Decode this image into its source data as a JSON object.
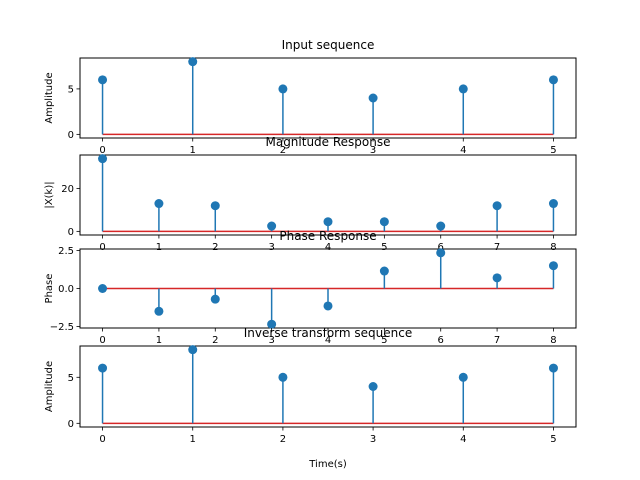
{
  "chart_data": [
    {
      "type": "stem",
      "title": "Input sequence",
      "xlabel": "",
      "ylabel": "Amplitude",
      "x": [
        0,
        1,
        2,
        3,
        4,
        5
      ],
      "y": [
        6,
        8,
        5,
        4,
        5,
        6
      ],
      "xlim": [
        -0.25,
        5.25
      ],
      "ylim": [
        -0.4,
        8.4
      ],
      "xticks": [
        0,
        1,
        2,
        3,
        4,
        5
      ],
      "yticks": [
        0,
        5
      ],
      "xtick_labels": [
        "0",
        "1",
        "2",
        "3",
        "4",
        "5"
      ],
      "ytick_labels": [
        "0",
        "5"
      ],
      "grid": false
    },
    {
      "type": "stem",
      "title": "Magnitude Response",
      "xlabel": "",
      "ylabel": "|X(k)|",
      "x": [
        0,
        1,
        2,
        3,
        4,
        5,
        6,
        7,
        8
      ],
      "y": [
        34,
        13,
        12,
        2.5,
        4.5,
        4.5,
        2.5,
        12,
        13
      ],
      "xlim": [
        -0.4,
        8.4
      ],
      "ylim": [
        -1.7,
        35.7
      ],
      "xticks": [
        0,
        1,
        2,
        3,
        4,
        5,
        6,
        7,
        8
      ],
      "yticks": [
        0,
        20
      ],
      "xtick_labels": [
        "0",
        "1",
        "2",
        "3",
        "4",
        "5",
        "6",
        "7",
        "8"
      ],
      "ytick_labels": [
        "0",
        "20"
      ],
      "grid": false
    },
    {
      "type": "stem",
      "title": "Phase Response",
      "xlabel": "",
      "ylabel": "Phase",
      "x": [
        0,
        1,
        2,
        3,
        4,
        5,
        6,
        7,
        8
      ],
      "y": [
        0,
        -1.5,
        -0.7,
        -2.35,
        -1.15,
        1.15,
        2.35,
        0.7,
        1.5
      ],
      "xlim": [
        -0.4,
        8.4
      ],
      "ylim": [
        -2.6,
        2.6
      ],
      "xticks": [
        0,
        1,
        2,
        3,
        4,
        5,
        6,
        7,
        8
      ],
      "yticks": [
        -2.5,
        0,
        2.5
      ],
      "xtick_labels": [
        "0",
        "1",
        "2",
        "3",
        "4",
        "5",
        "6",
        "7",
        "8"
      ],
      "ytick_labels": [
        "−2.5",
        "0.0",
        "2.5"
      ],
      "grid": false
    },
    {
      "type": "stem",
      "title": "Inverse transform sequence",
      "xlabel": "Time(s)",
      "ylabel": "Amplitude",
      "x": [
        0,
        1,
        2,
        3,
        4,
        5
      ],
      "y": [
        6,
        8,
        5,
        4,
        5,
        6
      ],
      "xlim": [
        -0.25,
        5.25
      ],
      "ylim": [
        -0.4,
        8.4
      ],
      "xticks": [
        0,
        1,
        2,
        3,
        4,
        5
      ],
      "yticks": [
        0,
        5
      ],
      "xtick_labels": [
        "0",
        "1",
        "2",
        "3",
        "4",
        "5"
      ],
      "ytick_labels": [
        "0",
        "5"
      ],
      "grid": false
    }
  ],
  "colors": {
    "stem": "#1f77b4",
    "marker": "#1f77b4",
    "baseline": "#d62728",
    "axes": "#000000",
    "background": "#ffffff"
  }
}
